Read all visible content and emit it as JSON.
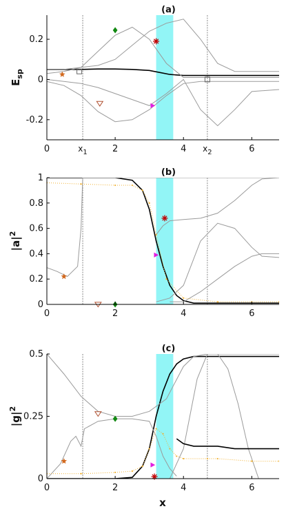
{
  "figure": {
    "x_axis_label": "x",
    "shared_x_ticks": [
      "0",
      "2",
      "4",
      "6"
    ]
  },
  "chart_data": [
    {
      "type": "line",
      "panel_label": "(a)",
      "ylabel": "E",
      "ylabel_subscript": "sp",
      "xlim": [
        0,
        6.8
      ],
      "ylim": [
        -0.3,
        0.32
      ],
      "yticks": [
        0.2,
        0,
        -0.2
      ],
      "ytick_labels": [
        "0.2",
        "0",
        "-0.2"
      ],
      "xticks": [
        0,
        2,
        4,
        6
      ],
      "xtick_labels": [
        "0",
        "2",
        "4",
        "6"
      ],
      "shaded_band": [
        3.2,
        3.7
      ],
      "vlines": [
        1.05,
        4.7
      ],
      "vline_labels": [
        {
          "x": 1.05,
          "text": "x",
          "sub": "1"
        },
        {
          "x": 4.7,
          "text": "x",
          "sub": "2"
        }
      ],
      "series": [
        {
          "style": "black",
          "x": [
            0,
            1,
            1.5,
            2,
            2.5,
            3,
            3.3,
            3.6,
            4,
            4.5,
            5,
            6,
            6.8
          ],
          "y": [
            0.05,
            0.05,
            0.052,
            0.052,
            0.05,
            0.045,
            0.035,
            0.025,
            0.02,
            0.02,
            0.02,
            0.02,
            0.02
          ]
        },
        {
          "style": "gray",
          "x": [
            0,
            0.5,
            1,
            1.5,
            2,
            2.5,
            3,
            3.5,
            4,
            4.5,
            5,
            5.5,
            6,
            6.8
          ],
          "y": [
            0.03,
            0.04,
            0.06,
            0.14,
            0.22,
            0.26,
            0.2,
            0.08,
            0.01,
            0.01,
            0.01,
            0.01,
            0.01,
            0.01
          ]
        },
        {
          "style": "gray",
          "x": [
            0,
            0.5,
            1,
            1.5,
            2,
            2.5,
            3,
            3.5,
            4,
            4.5,
            5,
            5.5,
            6,
            6.8
          ],
          "y": [
            0.05,
            0.05,
            0.06,
            0.07,
            0.1,
            0.17,
            0.24,
            0.28,
            0.3,
            0.2,
            0.08,
            0.04,
            0.04,
            0.04
          ]
        },
        {
          "style": "gray",
          "x": [
            0,
            0.5,
            1,
            1.5,
            2,
            2.5,
            3,
            3.5,
            4,
            4.5,
            5,
            5.5,
            6,
            6.8
          ],
          "y": [
            -0.01,
            -0.03,
            -0.08,
            -0.16,
            -0.21,
            -0.2,
            -0.15,
            -0.08,
            -0.02,
            -0.01,
            -0.01,
            -0.01,
            -0.01,
            -0.01
          ]
        },
        {
          "style": "gray",
          "x": [
            0,
            0.5,
            1,
            1.5,
            2,
            2.5,
            3,
            3.5,
            4,
            4.5,
            5,
            5.5,
            6,
            6.8
          ],
          "y": [
            0.0,
            -0.01,
            -0.02,
            -0.04,
            -0.07,
            -0.1,
            -0.13,
            -0.07,
            0.0,
            -0.15,
            -0.23,
            -0.15,
            -0.06,
            -0.05
          ]
        }
      ],
      "markers": [
        {
          "symbol": "star",
          "color": "#d2691e",
          "x": 0.45,
          "y": 0.025
        },
        {
          "symbol": "square",
          "color": "#666666",
          "x": 0.95,
          "y": 0.04
        },
        {
          "symbol": "diamond",
          "color": "#118811",
          "x": 2.0,
          "y": 0.245
        },
        {
          "symbol": "asterisk",
          "color": "#c00000",
          "x": 3.2,
          "y": 0.19
        },
        {
          "symbol": "triangle-down",
          "color": "#b05030",
          "x": 1.55,
          "y": -0.12
        },
        {
          "symbol": "triangle-right",
          "color": "#e020e0",
          "x": 3.1,
          "y": -0.13
        },
        {
          "symbol": "square",
          "color": "#666666",
          "x": 4.7,
          "y": 0.0
        }
      ]
    },
    {
      "type": "line",
      "panel_label": "(b)",
      "ylabel": "|a|",
      "ylabel_superscript": "2",
      "xlim": [
        0,
        6.8
      ],
      "ylim": [
        0,
        1
      ],
      "yticks": [
        0,
        0.2,
        0.4,
        0.6,
        0.8,
        1
      ],
      "ytick_labels": [
        "0",
        "0.2",
        "0.4",
        "0.6",
        "0.8",
        "1"
      ],
      "xticks": [
        0,
        2,
        4,
        6
      ],
      "xtick_labels": [
        "0",
        "2",
        "4",
        "6"
      ],
      "shaded_band": [
        3.2,
        3.7
      ],
      "vlines": [
        1.05,
        4.7
      ],
      "series": [
        {
          "style": "black",
          "x": [
            0,
            1,
            1.5,
            2,
            2.5,
            2.8,
            3,
            3.2,
            3.4,
            3.6,
            3.8,
            4,
            4.3,
            4.7,
            5,
            6,
            6.8
          ],
          "y": [
            1,
            1,
            1,
            1,
            0.98,
            0.9,
            0.75,
            0.5,
            0.3,
            0.15,
            0.07,
            0.03,
            0.01,
            0.01,
            0.01,
            0.01,
            0.01
          ]
        },
        {
          "style": "gray",
          "x": [
            0,
            0.3,
            0.6,
            0.9,
            1.0,
            1.05,
            1.1,
            1.5,
            2,
            3,
            4,
            5,
            6,
            6.8
          ],
          "y": [
            0.29,
            0.26,
            0.22,
            0.3,
            0.6,
            1,
            1,
            1,
            1,
            1,
            1,
            1,
            1,
            1
          ]
        },
        {
          "style": "gray",
          "x": [
            3.2,
            3.4,
            3.6,
            4,
            4.5,
            5,
            5.5,
            6,
            6.3,
            6.8
          ],
          "y": [
            0.55,
            0.62,
            0.66,
            0.67,
            0.68,
            0.72,
            0.82,
            0.94,
            0.99,
            1
          ]
        },
        {
          "style": "gray",
          "x": [
            3.2,
            3.6,
            4,
            4.5,
            5,
            5.5,
            6,
            6.3,
            6.8
          ],
          "y": [
            0.02,
            0.05,
            0.15,
            0.5,
            0.64,
            0.6,
            0.45,
            0.38,
            0.37
          ]
        },
        {
          "style": "gray",
          "x": [
            3.6,
            4,
            4.5,
            5,
            5.5,
            6,
            6.3,
            6.8
          ],
          "y": [
            0.02,
            0.02,
            0.1,
            0.2,
            0.3,
            0.38,
            0.4,
            0.4
          ]
        },
        {
          "style": "orange",
          "x": [
            0,
            1,
            2,
            2.5,
            2.8,
            3,
            3.2,
            3.5,
            4,
            5,
            6,
            6.8
          ],
          "y": [
            0.96,
            0.95,
            0.94,
            0.94,
            0.9,
            0.8,
            0.55,
            0.2,
            0.05,
            0.02,
            0.02,
            0.02
          ]
        }
      ],
      "markers": [
        {
          "symbol": "star",
          "color": "#d2691e",
          "x": 0.5,
          "y": 0.22
        },
        {
          "symbol": "triangle-down",
          "color": "#b05030",
          "x": 1.5,
          "y": 0.0
        },
        {
          "symbol": "diamond",
          "color": "#118811",
          "x": 2.0,
          "y": 0.0
        },
        {
          "symbol": "triangle-right",
          "color": "#e020e0",
          "x": 3.2,
          "y": 0.39
        },
        {
          "symbol": "asterisk",
          "color": "#c00000",
          "x": 3.45,
          "y": 0.68
        }
      ]
    },
    {
      "type": "line",
      "panel_label": "(c)",
      "ylabel": "|g|",
      "ylabel_superscript": "2",
      "xlim": [
        0,
        6.8
      ],
      "ylim": [
        0,
        0.5
      ],
      "yticks": [
        0,
        0.25,
        0.5
      ],
      "ytick_labels": [
        "0",
        "0.25",
        "0.5"
      ],
      "xticks": [
        0,
        2,
        4,
        6
      ],
      "xtick_labels": [
        "0",
        "2",
        "4",
        "6"
      ],
      "shaded_band": [
        3.2,
        3.7
      ],
      "vlines": [
        1.05,
        4.7
      ],
      "series": [
        {
          "style": "black",
          "x": [
            0,
            1,
            1.5,
            2,
            2.5,
            2.8,
            3,
            3.2,
            3.4,
            3.6,
            3.8,
            4,
            4.3,
            4.7,
            5,
            6,
            6.8
          ],
          "y": [
            0,
            0,
            0,
            0,
            0.005,
            0.05,
            0.12,
            0.25,
            0.35,
            0.42,
            0.46,
            0.48,
            0.49,
            0.49,
            0.49,
            0.49,
            0.49
          ]
        },
        {
          "style": "gray",
          "x": [
            0,
            0.5,
            1,
            1.5,
            2,
            2.5,
            3,
            3.5,
            4,
            4.3,
            4.7,
            5,
            6,
            6.8
          ],
          "y": [
            0.5,
            0.42,
            0.33,
            0.27,
            0.25,
            0.25,
            0.27,
            0.32,
            0.45,
            0.49,
            0.5,
            0.5,
            0.5,
            0.5
          ]
        },
        {
          "style": "gray",
          "x": [
            0,
            0.4,
            0.7,
            0.85,
            1.0,
            1.1,
            1.5,
            2,
            2.5,
            3,
            3.2,
            3.4,
            3.6,
            3.8
          ],
          "y": [
            0,
            0.06,
            0.15,
            0.17,
            0.13,
            0.2,
            0.23,
            0.24,
            0.24,
            0.23,
            0.17,
            0.09,
            0.04,
            0.01
          ]
        },
        {
          "style": "gray",
          "x": [
            3.6,
            4,
            4.4,
            4.7,
            5.0,
            5.3,
            5.6,
            5.9,
            6.2
          ],
          "y": [
            0.0,
            0.12,
            0.4,
            0.5,
            0.5,
            0.44,
            0.3,
            0.12,
            0.0
          ]
        },
        {
          "style": "gray",
          "x": [
            0,
            1,
            2,
            3,
            4,
            5,
            6,
            6.8
          ],
          "y": [
            0,
            0,
            0,
            0,
            0,
            0,
            0,
            0
          ]
        },
        {
          "style": "black",
          "x": [
            3.8,
            4,
            4.3,
            4.6,
            4.7,
            5,
            5.5,
            6,
            6.8
          ],
          "y": [
            0.16,
            0.14,
            0.13,
            0.13,
            0.13,
            0.13,
            0.12,
            0.12,
            0.12
          ]
        },
        {
          "style": "orange",
          "x": [
            0,
            1,
            2,
            2.5,
            2.8,
            3,
            3.2,
            3.4,
            3.6,
            3.8,
            4,
            4.7,
            5,
            6,
            6.8
          ],
          "y": [
            0.02,
            0.02,
            0.025,
            0.03,
            0.05,
            0.12,
            0.2,
            0.18,
            0.12,
            0.09,
            0.08,
            0.08,
            0.08,
            0.07,
            0.07
          ]
        }
      ],
      "markers": [
        {
          "symbol": "star",
          "color": "#d2691e",
          "x": 0.5,
          "y": 0.07
        },
        {
          "symbol": "triangle-down",
          "color": "#b05030",
          "x": 1.5,
          "y": 0.26
        },
        {
          "symbol": "diamond",
          "color": "#118811",
          "x": 2.0,
          "y": 0.24
        },
        {
          "symbol": "triangle-right",
          "color": "#e020e0",
          "x": 3.1,
          "y": 0.055
        },
        {
          "symbol": "asterisk",
          "color": "#c00000",
          "x": 3.15,
          "y": 0.008
        }
      ]
    }
  ]
}
